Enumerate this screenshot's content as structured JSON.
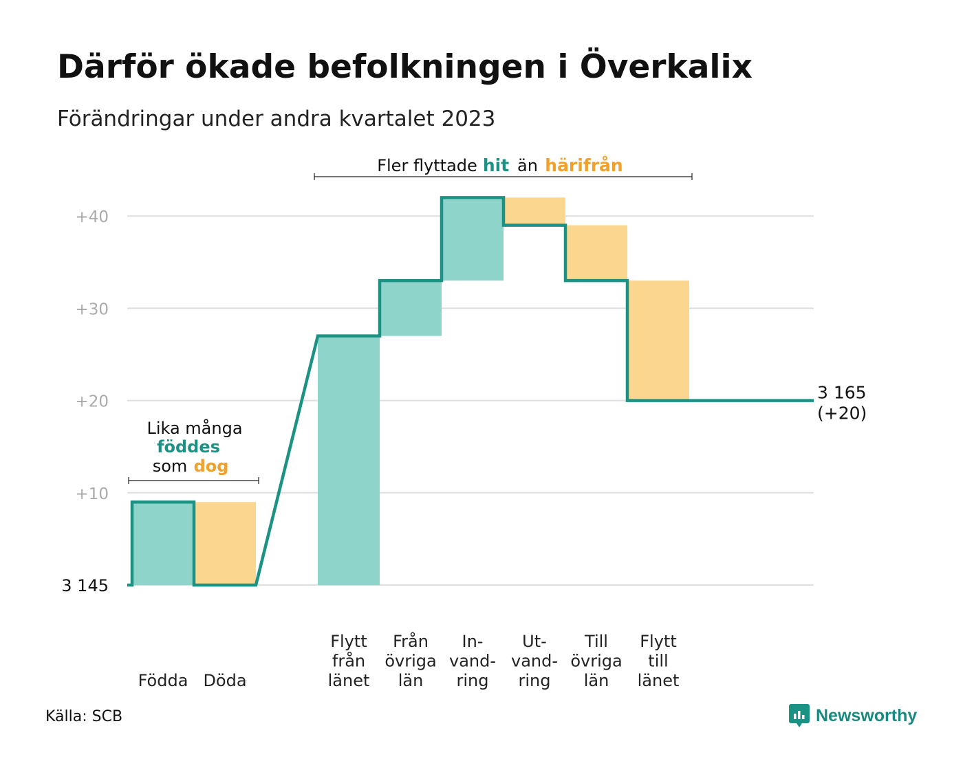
{
  "title": "Därför ökade befolkningen i Överkalix",
  "subtitle": "Förändringar under andra kvartalet 2023",
  "source": "Källa: SCB",
  "brand": "Newsworthy",
  "colors": {
    "in": "#8ed4cb",
    "out": "#fbd68f",
    "line": "#1b9283",
    "accent_in": "#1b9283",
    "accent_out": "#f0a12b",
    "grid": "#dedede",
    "tick": "#aaaaaa"
  },
  "annotations": {
    "births_deaths": {
      "line1": "Lika många",
      "line2": "föddes",
      "line3_a": "som",
      "line3_b": "dog"
    },
    "migration": {
      "part1": "Fler flyttade",
      "part2": "hit",
      "part3": "än",
      "part4": "härifrån"
    }
  },
  "chart_data": {
    "type": "waterfall",
    "start_value": 3145,
    "start_label": "3  145",
    "end_value": 3165,
    "end_label_line1": "3 165",
    "end_label_line2": "(+20)",
    "y_ticks": [
      "+10",
      "+20",
      "+30",
      "+40"
    ],
    "ylim": [
      0,
      42
    ],
    "steps": [
      {
        "label": [
          "Födda"
        ],
        "change": 9,
        "kind": "in"
      },
      {
        "label": [
          "Döda"
        ],
        "change": -9,
        "kind": "out"
      },
      {
        "label": [
          "Flytt",
          "från",
          "länet"
        ],
        "change": 27,
        "kind": "in"
      },
      {
        "label": [
          "Från",
          "övriga",
          "län"
        ],
        "change": 6,
        "kind": "in"
      },
      {
        "label": [
          "In-",
          "vand-",
          "ring"
        ],
        "change": 9,
        "kind": "in"
      },
      {
        "label": [
          "Ut-",
          "vand-",
          "ring"
        ],
        "change": -3,
        "kind": "out"
      },
      {
        "label": [
          "Till",
          "övriga",
          "län"
        ],
        "change": -6,
        "kind": "out"
      },
      {
        "label": [
          "Flytt",
          "till",
          "länet"
        ],
        "change": -13,
        "kind": "out"
      }
    ]
  }
}
